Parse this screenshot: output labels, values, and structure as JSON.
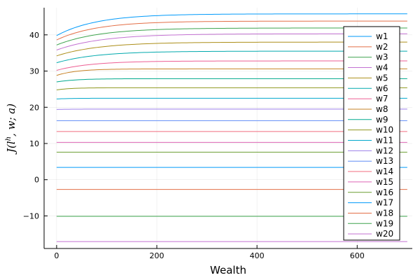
{
  "chart_data": {
    "type": "line",
    "title": "",
    "xlabel": "Wealth",
    "ylabel": "J(l^h, w; a)",
    "ylabel_main": "J(l",
    "ylabel_sup": "h",
    "ylabel_rest": ", w; a)",
    "xlim": [
      -25,
      710
    ],
    "ylim": [
      -19,
      47.5
    ],
    "x_ticks": [
      0,
      200,
      400,
      600
    ],
    "y_ticks": [
      -10,
      0,
      10,
      20,
      30,
      40
    ],
    "x_tick_labels": [
      "0",
      "200",
      "400",
      "600"
    ],
    "y_tick_labels": [
      "−10",
      "0",
      "10",
      "20",
      "30",
      "40"
    ],
    "grid": true,
    "legend_position": "right",
    "x": [
      0,
      700
    ],
    "series": [
      {
        "name": "w1",
        "color": "#009AFA",
        "start": 39.8,
        "end": 45.8,
        "tau": 80
      },
      {
        "name": "w2",
        "color": "#E36F47",
        "start": 38.6,
        "end": 43.8,
        "tau": 80
      },
      {
        "name": "w3",
        "color": "#3EA44E",
        "start": 37.2,
        "end": 41.9,
        "tau": 85
      },
      {
        "name": "w4",
        "color": "#C371D2",
        "start": 35.8,
        "end": 40.3,
        "tau": 90
      },
      {
        "name": "w5",
        "color": "#AC8E18",
        "start": 34.2,
        "end": 38.0,
        "tau": 85
      },
      {
        "name": "w6",
        "color": "#00A9AD",
        "start": 32.3,
        "end": 35.5,
        "tau": 80
      },
      {
        "name": "w7",
        "color": "#ED5E93",
        "start": 30.2,
        "end": 32.8,
        "tau": 70
      },
      {
        "name": "w8",
        "color": "#C68225",
        "start": 28.8,
        "end": 30.6,
        "tau": 40
      },
      {
        "name": "w9",
        "color": "#00A98D",
        "start": 27.0,
        "end": 27.9,
        "tau": 40
      },
      {
        "name": "w10",
        "color": "#8E971E",
        "start": 24.8,
        "end": 25.4,
        "tau": 30
      },
      {
        "name": "w11",
        "color": "#00A8CB",
        "start": 22.3,
        "end": 22.5,
        "tau": 30
      },
      {
        "name": "w12",
        "color": "#9B7FE9",
        "start": 19.4,
        "end": 19.5,
        "tau": 30
      },
      {
        "name": "w13",
        "color": "#618DF6",
        "start": 16.3,
        "end": 16.3,
        "tau": 30
      },
      {
        "name": "w14",
        "color": "#F16C7F",
        "start": 13.3,
        "end": 13.3,
        "tau": 30
      },
      {
        "name": "w15",
        "color": "#DD64B5",
        "start": 10.3,
        "end": 10.3,
        "tau": 30
      },
      {
        "name": "w16",
        "color": "#6B9E32",
        "start": 7.6,
        "end": 7.6,
        "tau": 30
      },
      {
        "name": "w17",
        "color": "#009AFA",
        "start": 3.4,
        "end": 3.4,
        "tau": 30
      },
      {
        "name": "w18",
        "color": "#E36F47",
        "start": -2.7,
        "end": -2.7,
        "tau": 30
      },
      {
        "name": "w19",
        "color": "#3EA44E",
        "start": -10.1,
        "end": -10.1,
        "tau": 30
      },
      {
        "name": "w20",
        "color": "#C371D2",
        "start": -17.1,
        "end": -17.1,
        "tau": 30
      }
    ]
  }
}
